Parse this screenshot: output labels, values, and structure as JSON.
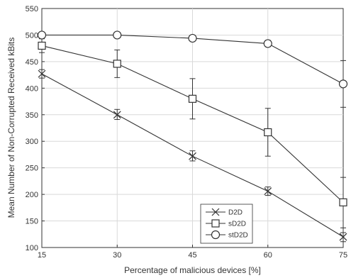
{
  "chart_data": {
    "type": "line",
    "xlabel": "Percentage of malicious devices [%]",
    "ylabel": "Mean Number of Non-Corrupted Received kBits",
    "x": [
      15,
      30,
      45,
      60,
      75
    ],
    "xticks": [
      "15",
      "30",
      "45",
      "60",
      "75"
    ],
    "yticks": [
      "100",
      "150",
      "200",
      "250",
      "300",
      "350",
      "400",
      "450",
      "500",
      "550"
    ],
    "xlim": [
      15,
      75
    ],
    "ylim": [
      100,
      550
    ],
    "grid": true,
    "legend_position": "bottom-right",
    "series": [
      {
        "name": "D2D",
        "marker": "x",
        "values": [
          427,
          350,
          272,
          206,
          120
        ],
        "error_low": [
          419,
          341,
          263,
          198,
          111
        ],
        "error_high": [
          435,
          360,
          282,
          214,
          128
        ]
      },
      {
        "name": "sD2D",
        "marker": "square",
        "values": [
          480,
          446,
          380,
          317,
          185
        ],
        "error_low": [
          467,
          420,
          342,
          272,
          137
        ],
        "error_high": [
          493,
          472,
          418,
          362,
          232
        ]
      },
      {
        "name": "stD2D",
        "marker": "circle",
        "values": [
          500,
          500,
          494,
          484,
          408
        ],
        "error_low": [
          499,
          499,
          490,
          478,
          364
        ],
        "error_high": [
          501,
          501,
          498,
          490,
          452
        ]
      }
    ],
    "colors": {
      "line": "#333333",
      "grid": "#d9d9d9",
      "axis": "#333333"
    }
  }
}
